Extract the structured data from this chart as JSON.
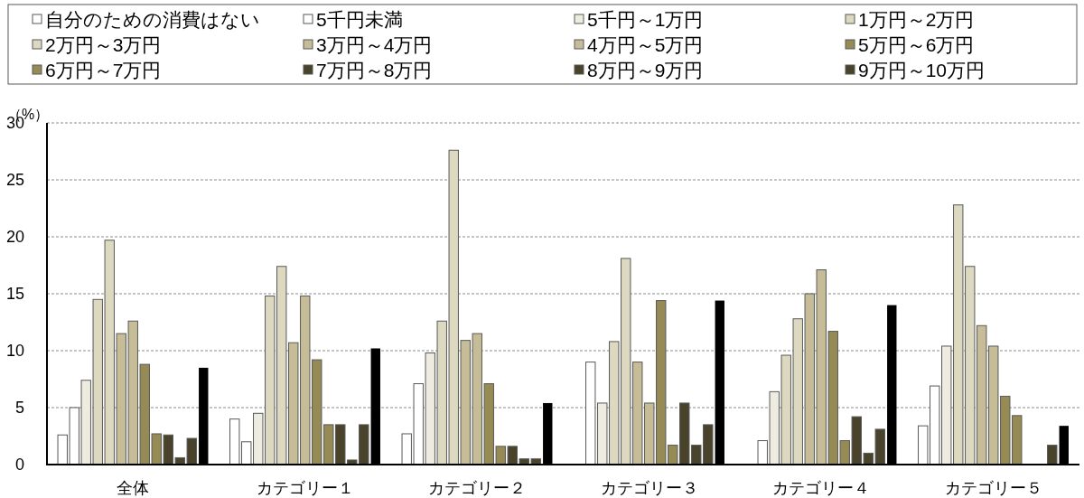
{
  "chart_data": {
    "type": "bar",
    "ylabel": "（%）",
    "categories": [
      "全体",
      "カテゴリー１",
      "カテゴリー２",
      "カテゴリー３",
      "カテゴリー４",
      "カテゴリー５"
    ],
    "series": [
      {
        "name": "自分のための消費はない",
        "color": "#ffffff",
        "values": [
          2.6,
          4.0,
          2.7,
          null,
          null,
          3.4
        ]
      },
      {
        "name": "5千円未満",
        "color": "#ffffff",
        "values": [
          5.0,
          2.0,
          7.1,
          9.0,
          2.1,
          6.9
        ]
      },
      {
        "name": "5千円～1万円",
        "color": "#eeebe0",
        "values": [
          7.4,
          4.5,
          9.8,
          5.4,
          6.4,
          10.4
        ]
      },
      {
        "name": "1万円～2万円",
        "color": "#ddd8c0",
        "values": [
          14.5,
          14.8,
          12.6,
          10.8,
          9.6,
          22.8
        ]
      },
      {
        "name": "2万円～3万円",
        "color": "#ddd8c0",
        "values": [
          19.7,
          17.4,
          27.6,
          18.1,
          12.8,
          17.4
        ]
      },
      {
        "name": "3万円～4万円",
        "color": "#c6bc97",
        "values": [
          11.5,
          10.7,
          10.9,
          9.0,
          15.0,
          12.2
        ]
      },
      {
        "name": "4万円～5万円",
        "color": "#c6bc97",
        "values": [
          12.6,
          14.8,
          11.5,
          5.4,
          17.1,
          10.4
        ]
      },
      {
        "name": "5万円～6万円",
        "color": "#968a55",
        "values": [
          8.8,
          9.2,
          7.1,
          14.4,
          11.7,
          6.0
        ]
      },
      {
        "name": "6万円～7万円",
        "color": "#968a55",
        "values": [
          2.7,
          3.5,
          1.6,
          1.7,
          2.1,
          4.3
        ]
      },
      {
        "name": "7万円～8万円",
        "color": "#4a432b",
        "values": [
          2.6,
          3.5,
          1.6,
          5.4,
          4.2,
          null
        ]
      },
      {
        "name": "8万円～9万円",
        "color": "#4a432b",
        "values": [
          0.6,
          0.4,
          0.5,
          1.7,
          1.0,
          null
        ]
      },
      {
        "name": "9万円～10万円",
        "color": "#4a432b",
        "values": [
          2.3,
          3.5,
          0.5,
          3.5,
          3.1,
          1.7
        ]
      },
      {
        "color": "#000000",
        "values": [
          8.5,
          10.2,
          5.4,
          14.4,
          14.0,
          3.4
        ]
      }
    ],
    "ylim": [
      0,
      30
    ],
    "yticks": [
      0,
      5,
      10,
      15,
      20,
      25,
      30
    ],
    "grid": "y",
    "legend": "top"
  }
}
